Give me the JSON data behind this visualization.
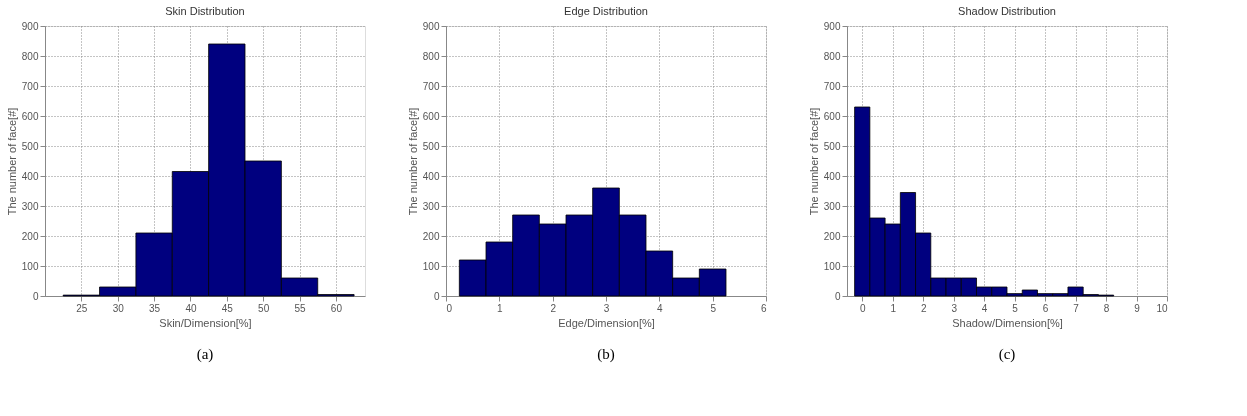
{
  "chart_data": [
    {
      "type": "histogram",
      "title": "Skin Distribution",
      "xlabel": "Skin/Dimension[%]",
      "ylabel": "The number of face[#]",
      "annotations": [
        "(a)"
      ],
      "color": "#00007f",
      "bins": [
        22.5,
        27.5,
        32.5,
        37.5,
        42.5,
        47.5,
        52.5,
        57.5,
        62.5
      ],
      "values": [
        3,
        30,
        210,
        415,
        840,
        450,
        60,
        5
      ],
      "xlim": [
        20,
        64
      ],
      "xticks": [
        25,
        30,
        35,
        40,
        45,
        50,
        55,
        60
      ],
      "ylim": [
        0,
        900
      ],
      "yticks": [
        0,
        100,
        200,
        300,
        400,
        500,
        600,
        700,
        800,
        900
      ],
      "grid": true,
      "line_style": "dotted"
    },
    {
      "type": "histogram",
      "title": "Edge Distribution",
      "xlabel": "Edge/Dimension[%]",
      "ylabel": "The number of face[#]",
      "annotations": [
        "(b)"
      ],
      "color": "#00007f",
      "bins": [
        0.25,
        0.75,
        1.25,
        1.75,
        2.25,
        2.75,
        3.25,
        3.75,
        4.25,
        4.75,
        5.25
      ],
      "values": [
        120,
        180,
        270,
        240,
        270,
        360,
        270,
        150,
        60,
        90
      ],
      "xlim": [
        0,
        6
      ],
      "xticks": [
        0,
        1,
        2,
        3,
        4,
        5,
        6
      ],
      "ylim": [
        0,
        900
      ],
      "yticks": [
        0,
        100,
        200,
        300,
        400,
        500,
        600,
        700,
        800,
        900
      ],
      "grid": true,
      "line_style": "dotted"
    },
    {
      "type": "histogram",
      "title": "Shadow Distribution",
      "xlabel": "Shadow/Dimension[%]",
      "ylabel": "The number of face[#]",
      "annotations": [
        "(c)"
      ],
      "color": "#00007f",
      "bins": [
        -0.25,
        0.25,
        0.75,
        1.25,
        1.75,
        2.25,
        2.75,
        3.25,
        3.75,
        4.25,
        4.75,
        5.25,
        5.75,
        6.25,
        6.75,
        7.25,
        7.75,
        8.25
      ],
      "values": [
        630,
        260,
        240,
        345,
        210,
        60,
        60,
        60,
        30,
        30,
        8,
        20,
        8,
        8,
        30,
        5,
        3
      ],
      "xlim": [
        -0.5,
        10
      ],
      "xticks": [
        0,
        1,
        2,
        3,
        4,
        5,
        6,
        7,
        8,
        9,
        10
      ],
      "ylim": [
        0,
        900
      ],
      "yticks": [
        0,
        100,
        200,
        300,
        400,
        500,
        600,
        700,
        800,
        900
      ],
      "grid": true,
      "line_style": "dotted"
    }
  ]
}
